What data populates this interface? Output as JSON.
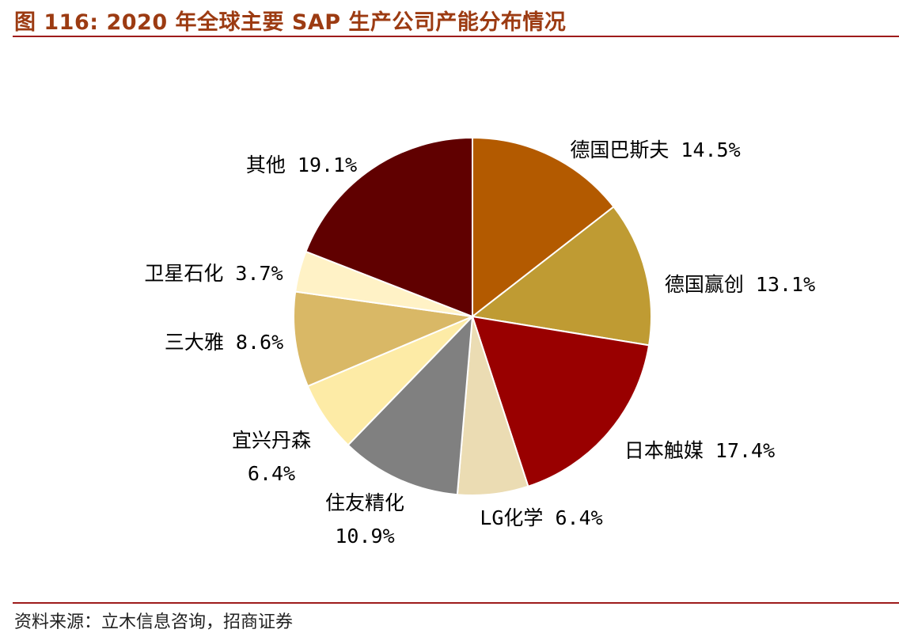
{
  "title": "图 116: 2020 年全球主要 SAP 生产公司产能分布情况",
  "source": "资料来源：立木信息咨询，招商证券",
  "chart_data": {
    "type": "pie",
    "title": "图 116: 2020 年全球主要 SAP 生产公司产能分布情况",
    "legend": "none",
    "slices": [
      {
        "name": "德国巴斯夫",
        "value": 14.5,
        "label": "德国巴斯夫 14.5%",
        "color": "#b35a00"
      },
      {
        "name": "德国赢创",
        "value": 13.1,
        "label": "德国赢创 13.1%",
        "color": "#bf9b33"
      },
      {
        "name": "日本触媒",
        "value": 17.4,
        "label": "日本触媒 17.4%",
        "color": "#990000"
      },
      {
        "name": "LG化学",
        "value": 6.4,
        "label": "LG化学 6.4%",
        "color": "#ebdcb3"
      },
      {
        "name": "住友精化",
        "value": 10.9,
        "label": "住友精化",
        "label2": "10.9%",
        "color": "#808080"
      },
      {
        "name": "宜兴丹森",
        "value": 6.4,
        "label": "宜兴丹森",
        "label2": "6.4%",
        "color": "#fdeba6"
      },
      {
        "name": "三大雅",
        "value": 8.6,
        "label": "三大雅 8.6%",
        "color": "#d9b866"
      },
      {
        "name": "卫星石化",
        "value": 3.7,
        "label": "卫星石化 3.7%",
        "color": "#fff2c6"
      },
      {
        "name": "其他",
        "value": 19.1,
        "label": "其他 19.1%",
        "color": "#600000"
      }
    ]
  }
}
